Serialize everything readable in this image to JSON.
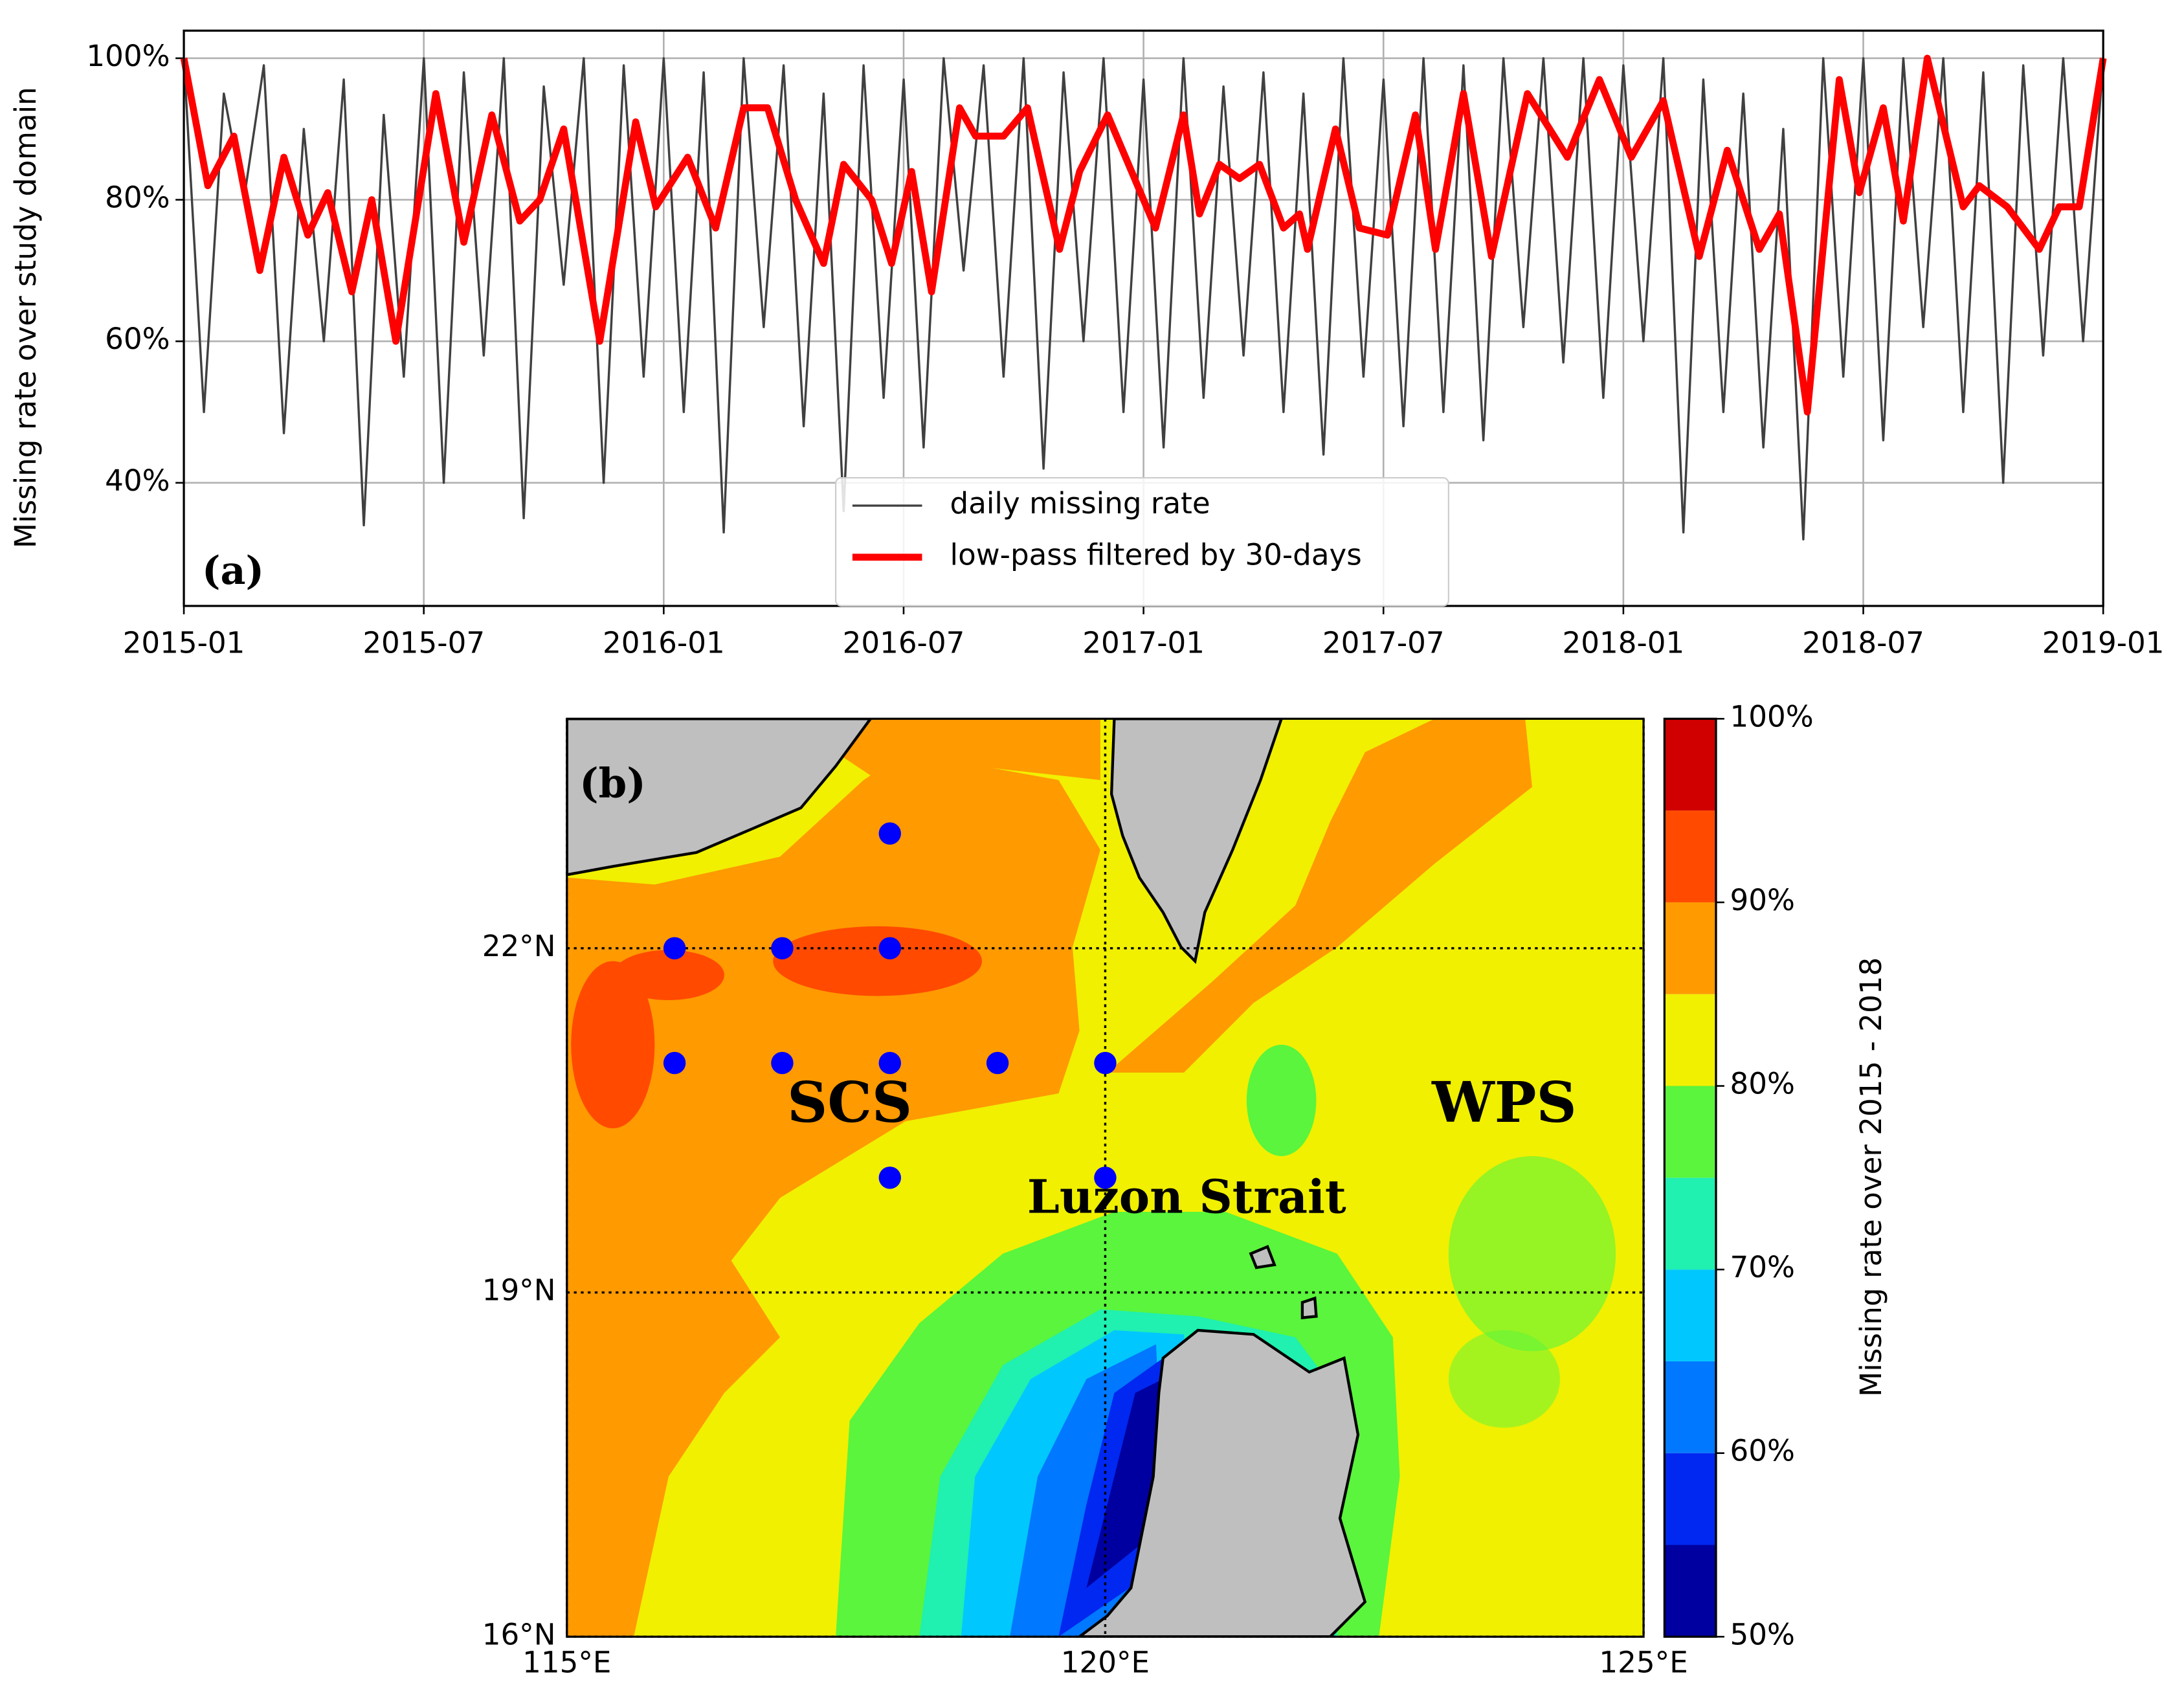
{
  "chart_data": [
    {
      "type": "line",
      "ylabel": "Missing rate over study domain",
      "annotation": "(a)",
      "xlim": [
        0,
        48
      ],
      "xticks": [
        {
          "value": 0,
          "label": "2015-01"
        },
        {
          "value": 6,
          "label": "2015-07"
        },
        {
          "value": 12,
          "label": "2016-01"
        },
        {
          "value": 18,
          "label": "2016-07"
        },
        {
          "value": 24,
          "label": "2017-01"
        },
        {
          "value": 30,
          "label": "2017-07"
        },
        {
          "value": 36,
          "label": "2018-01"
        },
        {
          "value": 42,
          "label": "2018-07"
        },
        {
          "value": 48,
          "label": "2019-01"
        }
      ],
      "ylim": [
        22.6,
        103.9
      ],
      "yticks": [
        {
          "value": 40,
          "label": "40%"
        },
        {
          "value": 60,
          "label": "60%"
        },
        {
          "value": 80,
          "label": "80%"
        },
        {
          "value": 100,
          "label": "100%"
        }
      ],
      "grid": true,
      "legend": "lower center",
      "series": [
        {
          "name": "daily missing rate",
          "color": "#404040",
          "x": [
            0,
            0.5,
            1,
            1.5,
            2,
            2.5,
            3,
            3.5,
            4,
            4.5,
            5,
            5.5,
            6,
            6.5,
            7,
            7.5,
            8,
            8.5,
            9,
            9.5,
            10,
            10.5,
            11,
            11.5,
            12,
            12.5,
            13,
            13.5,
            14,
            14.5,
            15,
            15.5,
            16,
            16.5,
            17,
            17.5,
            18,
            18.5,
            19,
            19.5,
            20,
            20.5,
            21,
            21.5,
            22,
            22.5,
            23,
            23.5,
            24,
            24.5,
            25,
            25.5,
            26,
            26.5,
            27,
            27.5,
            28,
            28.5,
            29,
            29.5,
            30,
            30.5,
            31,
            31.5,
            32,
            32.5,
            33,
            33.5,
            34,
            34.5,
            35,
            35.5,
            36,
            36.5,
            37,
            37.5,
            38,
            38.5,
            39,
            39.5,
            40,
            40.5,
            41,
            41.5,
            42,
            42.5,
            43,
            43.5,
            44,
            44.5,
            45,
            45.5,
            46,
            46.5,
            47,
            47.5,
            48
          ],
          "values": [
            100,
            50,
            95,
            80,
            99,
            47,
            90,
            60,
            97,
            34,
            92,
            55,
            100,
            40,
            98,
            58,
            100,
            35,
            96,
            68,
            100,
            40,
            99,
            55,
            100,
            50,
            98,
            33,
            100,
            62,
            99,
            48,
            95,
            36,
            99,
            52,
            97,
            45,
            100,
            70,
            99,
            55,
            100,
            42,
            98,
            60,
            100,
            50,
            97,
            45,
            100,
            52,
            96,
            58,
            98,
            50,
            95,
            44,
            100,
            55,
            97,
            48,
            100,
            50,
            99,
            46,
            100,
            62,
            100,
            57,
            100,
            52,
            99,
            60,
            100,
            33,
            97,
            50,
            95,
            45,
            90,
            32,
            100,
            55,
            100,
            46,
            100,
            62,
            100,
            50,
            98,
            40,
            99,
            58,
            100,
            60,
            100
          ]
        },
        {
          "name": "low-pass filtered by 30-days",
          "color": "#ff0000",
          "x": [
            0,
            0.6,
            1.25,
            1.9,
            2.5,
            3.1,
            3.6,
            4.2,
            4.7,
            5.3,
            6.3,
            7.0,
            7.7,
            8.4,
            8.9,
            9.5,
            10.4,
            11.3,
            11.8,
            12.6,
            13.3,
            14.0,
            14.6,
            15.3,
            16.0,
            16.5,
            17.2,
            17.7,
            18.2,
            18.7,
            19.4,
            19.8,
            20.5,
            21.1,
            21.9,
            22.4,
            23.1,
            24.3,
            25.0,
            25.4,
            25.9,
            26.4,
            26.9,
            27.5,
            27.9,
            28.1,
            28.8,
            29.4,
            30.1,
            30.8,
            31.3,
            32.0,
            32.7,
            33.6,
            34.6,
            35.4,
            36.2,
            37.0,
            37.9,
            38.6,
            39.4,
            39.9,
            40.6,
            41.4,
            41.9,
            42.5,
            43.0,
            43.6,
            44.5,
            44.9,
            45.6,
            46.4,
            46.9,
            47.4,
            48
          ],
          "values": [
            100,
            82,
            89,
            70,
            86,
            75,
            81,
            67,
            80,
            60,
            95,
            74,
            92,
            77,
            80,
            90,
            60,
            91,
            79,
            86,
            76,
            93,
            93,
            80,
            71,
            85,
            80,
            71,
            84,
            67,
            93,
            89,
            89,
            93,
            73,
            84,
            92,
            76,
            92,
            78,
            85,
            83,
            85,
            76,
            78,
            73,
            90,
            76,
            75,
            92,
            73,
            95,
            72,
            95,
            86,
            97,
            86,
            94,
            72,
            87,
            73,
            78,
            50,
            97,
            81,
            93,
            77,
            100,
            79,
            82,
            79,
            73,
            79,
            79,
            100
          ]
        }
      ]
    },
    {
      "type": "map",
      "annotation": "(b)",
      "labels": [
        "SCS",
        "WPS",
        "Luzon Strait"
      ],
      "xlim": [
        115,
        125
      ],
      "xticks": [
        {
          "value": 115,
          "label": "115°E"
        },
        {
          "value": 120,
          "label": "120°E"
        },
        {
          "value": 125,
          "label": "125°E"
        }
      ],
      "ylim": [
        16,
        24
      ],
      "yticks": [
        {
          "value": 16,
          "label": "16°N"
        },
        {
          "value": 19,
          "label": "19°N"
        },
        {
          "value": 22,
          "label": "22°N"
        }
      ],
      "points": {
        "color": "#0000ff",
        "lon": [
          116,
          117,
          118,
          118,
          116,
          117,
          118,
          119,
          120,
          118,
          120
        ],
        "lat": [
          22,
          22,
          22,
          23,
          21,
          21,
          21,
          21,
          21,
          20,
          20
        ]
      },
      "colorbar": {
        "label": "Missing rate over 2015 - 2018",
        "levels": [
          50,
          55,
          60,
          65,
          70,
          75,
          80,
          85,
          90,
          95,
          100
        ],
        "colors": [
          "#0000a0",
          "#0028f0",
          "#0078ff",
          "#00c8ff",
          "#20f0b0",
          "#5af53c",
          "#f0f000",
          "#ff9a00",
          "#ff4a00",
          "#d00000"
        ],
        "ticks": [
          {
            "value": 50,
            "label": "50%"
          },
          {
            "value": 60,
            "label": "60%"
          },
          {
            "value": 70,
            "label": "70%"
          },
          {
            "value": 80,
            "label": "80%"
          },
          {
            "value": 90,
            "label": "90%"
          },
          {
            "value": 100,
            "label": "100%"
          }
        ]
      }
    }
  ]
}
